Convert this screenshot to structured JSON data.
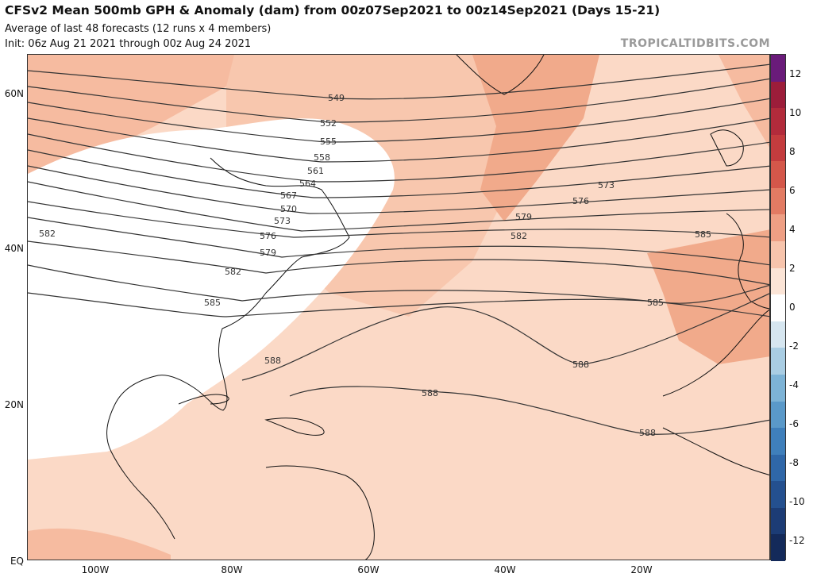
{
  "header": {
    "title": "CFSv2 Mean 500mb GPH & Anomaly (dam) from 00z07Sep2021 to 00z14Sep2021 (Days 15-21)",
    "subtitle": "Average of last 48 forecasts (12 runs x 4 members)",
    "init": "Init: 06z Aug 21 2021 through 00z Aug 24 2021"
  },
  "brand": "TROPICALTIDBITS.COM",
  "axes": {
    "lat_labels": [
      "60N",
      "40N",
      "20N",
      "EQ"
    ],
    "lon_labels": [
      "100W",
      "80W",
      "60W",
      "40W",
      "20W"
    ]
  },
  "contour_labels": [
    "549",
    "552",
    "555",
    "558",
    "561",
    "564",
    "567",
    "570",
    "573",
    "576",
    "579",
    "582",
    "585",
    "588",
    "573",
    "576",
    "579",
    "582",
    "585",
    "588",
    "588",
    "588",
    "582",
    "585"
  ],
  "colorbar": {
    "labels": [
      "12",
      "10",
      "8",
      "6",
      "4",
      "2",
      "0",
      "-2",
      "-4",
      "-6",
      "-8",
      "-10",
      "-12"
    ],
    "colors": [
      "#6a1b7a",
      "#9c1d3a",
      "#b22b3b",
      "#c43c3e",
      "#d4574a",
      "#e27b63",
      "#ee9f84",
      "#f7c4ac",
      "#fbe4d6",
      "#ffffff",
      "#d6e6f0",
      "#a9cde3",
      "#7db3d6",
      "#5a99c9",
      "#3f7fbb",
      "#2f67a8",
      "#24508f",
      "#1c3c75",
      "#142a5a"
    ]
  },
  "legend_colors": {
    "anomaly_0_2": "#fbd9c6",
    "anomaly_2_4": "#f6bba0",
    "anomaly_4_6": "#ee9c7e",
    "neutral": "#ffffff",
    "contour": "#333333"
  }
}
